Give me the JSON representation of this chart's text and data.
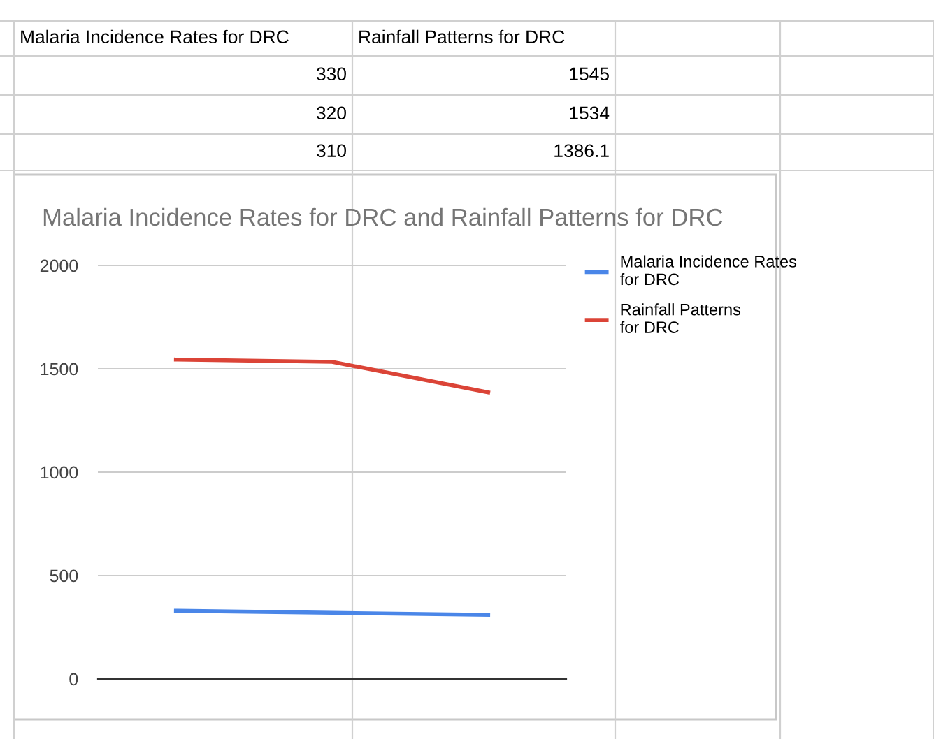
{
  "chart_data": [
    {
      "type": "other",
      "annotations": [
        "Malaria Incidence Rates for DRC",
        "Rainfall Patterns for DRC",
        "330",
        "1545",
        "320",
        "1534",
        "310",
        "1386.1"
      ]
    },
    {
      "type": "line",
      "title": "Malaria Incidence Rates for DRC and Rainfall Patterns for DRC",
      "categories": [
        null,
        null,
        null
      ],
      "series": [
        {
          "name": "Malaria Incidence Rates for DRC",
          "color": "#4a86e8",
          "values": [
            330,
            320,
            310
          ]
        },
        {
          "name": "Rainfall Patterns for DRC",
          "color": "#db4437",
          "values": [
            1545,
            1534,
            1386.1
          ]
        }
      ],
      "ylim": [
        0,
        2000
      ],
      "yticks": [
        0,
        500,
        1000,
        1500,
        2000
      ],
      "grid": "y",
      "legend": "right"
    }
  ]
}
